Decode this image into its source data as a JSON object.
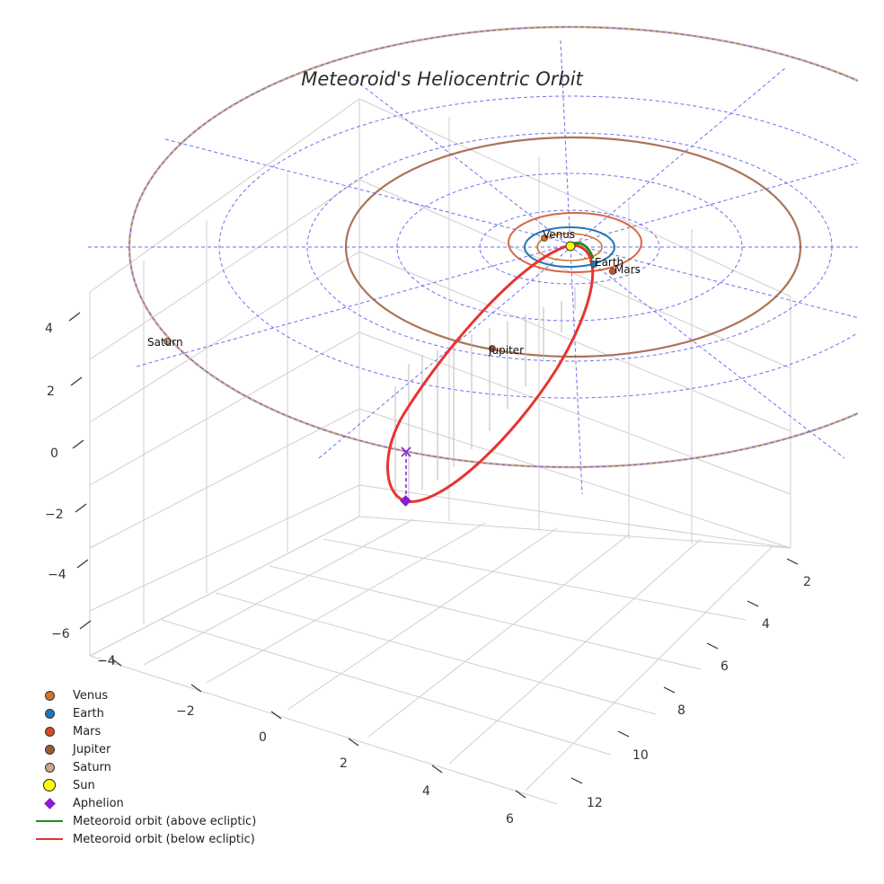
{
  "chart_data": {
    "type": "3d-line",
    "title": "Meteoroid's Heliocentric Orbit",
    "axes": {
      "x": {
        "ticks": [
          -4,
          -2,
          0,
          2,
          4,
          6
        ],
        "tick_labels": [
          "−4",
          "−2",
          "0",
          "2",
          "4",
          "6"
        ]
      },
      "y": {
        "ticks": [
          2,
          4,
          6,
          8,
          10,
          12
        ],
        "tick_labels": [
          "2",
          "4",
          "6",
          "8",
          "10",
          "12"
        ]
      },
      "z": {
        "ticks": [
          4,
          2,
          0,
          -2,
          -4,
          -6
        ],
        "tick_labels": [
          "4",
          "2",
          "0",
          "−2",
          "−4",
          "−6"
        ]
      }
    },
    "planets": [
      {
        "name": "Venus",
        "orbit_radius_au": 0.72,
        "color": "#d0762a"
      },
      {
        "name": "Earth",
        "orbit_radius_au": 1.0,
        "color": "#1f77b4"
      },
      {
        "name": "Mars",
        "orbit_radius_au": 1.52,
        "color": "#d14b25"
      },
      {
        "name": "Jupiter",
        "orbit_radius_au": 5.2,
        "color": "#9c5a3c"
      },
      {
        "name": "Saturn",
        "orbit_radius_au": 9.58,
        "color": "#cfa784"
      }
    ],
    "sun": {
      "name": "Sun",
      "color": "#ffff00"
    },
    "aphelion": {
      "name": "Aphelion",
      "color": "#8a1cd1"
    },
    "meteoroid_orbit": [
      {
        "name": "Meteoroid orbit (above ecliptic)",
        "color": "#228b22"
      },
      {
        "name": "Meteoroid orbit (below ecliptic)",
        "color": "#e8332f"
      }
    ],
    "reference_grid": {
      "style": "dashed",
      "color": "#5555ee"
    }
  },
  "legend": {
    "items": [
      {
        "kind": "dot",
        "label": "Venus",
        "color": "#d0762a"
      },
      {
        "kind": "dot",
        "label": "Earth",
        "color": "#1f77b4"
      },
      {
        "kind": "dot",
        "label": "Mars",
        "color": "#d14b25"
      },
      {
        "kind": "dot",
        "label": "Jupiter",
        "color": "#9c5a3c"
      },
      {
        "kind": "dot",
        "label": "Saturn",
        "color": "#cfa784"
      },
      {
        "kind": "sun",
        "label": "Sun",
        "color": "#ffff00"
      },
      {
        "kind": "diamond",
        "label": "Aphelion",
        "color": "#8a1cd1"
      },
      {
        "kind": "line",
        "label": "Meteoroid orbit (above ecliptic)",
        "color": "#228b22"
      },
      {
        "kind": "line",
        "label": "Meteoroid orbit (below ecliptic)",
        "color": "#e8332f"
      }
    ]
  }
}
